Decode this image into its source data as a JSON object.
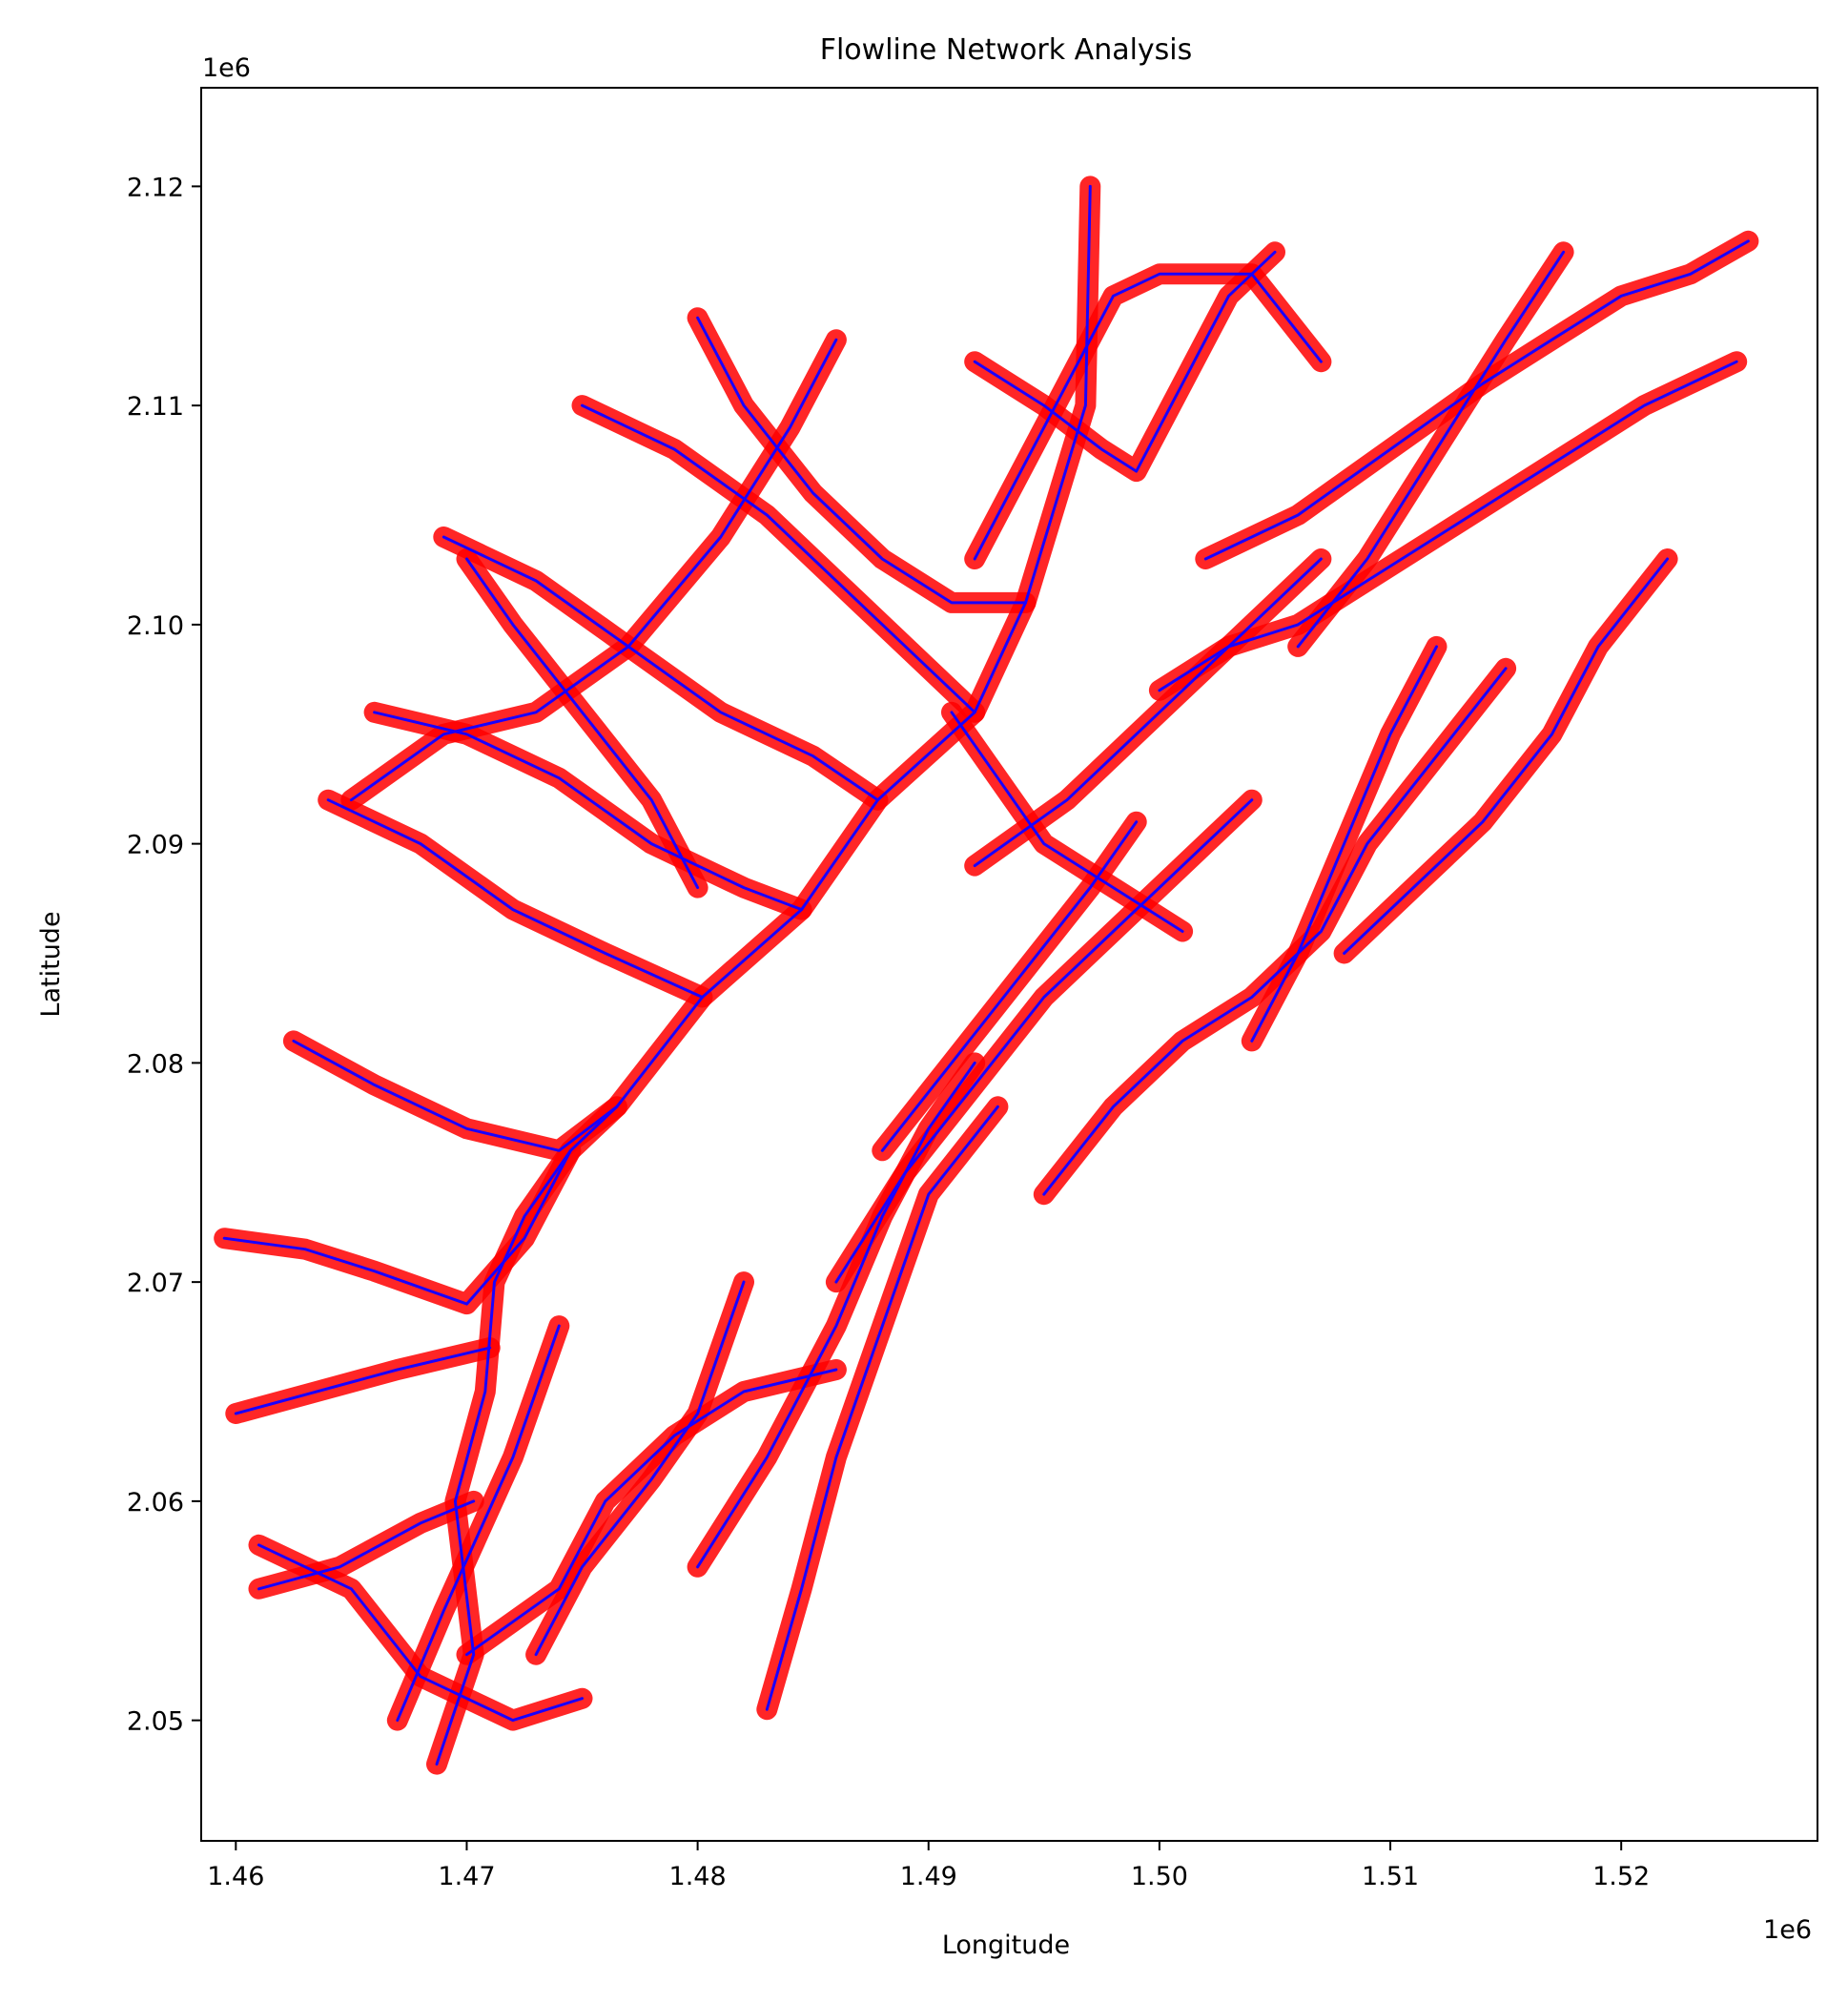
{
  "chart_data": {
    "type": "line",
    "title": "Flowline Network Analysis",
    "xlabel": "Longitude",
    "ylabel": "Latitude",
    "x_offset_label": "1e6",
    "y_offset_label": "1e6",
    "xlim": [
      1.4585,
      1.5285
    ],
    "ylim": [
      2.0445,
      2.1245
    ],
    "xticks": [
      1.46,
      1.47,
      1.48,
      1.49,
      1.5,
      1.51,
      1.52
    ],
    "xtick_labels": [
      "1.46",
      "1.47",
      "1.48",
      "1.49",
      "1.50",
      "1.51",
      "1.52"
    ],
    "yticks": [
      2.05,
      2.06,
      2.07,
      2.08,
      2.09,
      2.1,
      2.11,
      2.12
    ],
    "ytick_labels": [
      "2.05",
      "2.06",
      "2.07",
      "2.08",
      "2.09",
      "2.10",
      "2.11",
      "2.12"
    ],
    "grid": false,
    "colors": {
      "buffer": "#ff0000",
      "flowline": "#1a00ff"
    },
    "series": [
      {
        "x": [
          1.4687,
          1.4703,
          1.4695,
          1.4708,
          1.4712,
          1.4725,
          1.4745,
          1.4765,
          1.4802,
          1.4845,
          1.4878,
          1.492,
          1.4942,
          1.4968,
          1.497
        ],
        "y": [
          2.048,
          2.053,
          2.06,
          2.065,
          2.07,
          2.073,
          2.076,
          2.078,
          2.083,
          2.087,
          2.092,
          2.096,
          2.101,
          2.11,
          2.12
        ]
      },
      {
        "x": [
          1.4595,
          1.463,
          1.466,
          1.47,
          1.4725,
          1.4745
        ],
        "y": [
          2.072,
          2.0715,
          2.0705,
          2.069,
          2.072,
          2.076
        ]
      },
      {
        "x": [
          1.46,
          1.4635,
          1.467,
          1.471
        ],
        "y": [
          2.064,
          2.065,
          2.066,
          2.067
        ]
      },
      {
        "x": [
          1.461,
          1.4645,
          1.468,
          1.4703
        ],
        "y": [
          2.056,
          2.057,
          2.059,
          2.06
        ]
      },
      {
        "x": [
          1.4625,
          1.466,
          1.47,
          1.474,
          1.4765
        ],
        "y": [
          2.081,
          2.079,
          2.077,
          2.076,
          2.078
        ]
      },
      {
        "x": [
          1.464,
          1.468,
          1.472,
          1.476,
          1.4802
        ],
        "y": [
          2.092,
          2.09,
          2.087,
          2.085,
          2.083
        ]
      },
      {
        "x": [
          1.466,
          1.47,
          1.474,
          1.478,
          1.482,
          1.4845
        ],
        "y": [
          2.096,
          2.095,
          2.093,
          2.09,
          2.088,
          2.087
        ]
      },
      {
        "x": [
          1.469,
          1.473,
          1.477,
          1.481,
          1.485,
          1.4878
        ],
        "y": [
          2.104,
          2.102,
          2.099,
          2.096,
          2.094,
          2.092
        ]
      },
      {
        "x": [
          1.475,
          1.479,
          1.483,
          1.487,
          1.49,
          1.492
        ],
        "y": [
          2.11,
          2.108,
          2.105,
          2.101,
          2.098,
          2.096
        ]
      },
      {
        "x": [
          1.48,
          1.482,
          1.485,
          1.488,
          1.491,
          1.4942
        ],
        "y": [
          2.114,
          2.11,
          2.106,
          2.103,
          2.101,
          2.101
        ]
      },
      {
        "x": [
          1.492,
          1.495,
          1.4975,
          1.499,
          1.501,
          1.503,
          1.505
        ],
        "y": [
          2.112,
          2.11,
          2.108,
          2.107,
          2.111,
          2.115,
          2.117
        ]
      },
      {
        "x": [
          1.47,
          1.474,
          1.476,
          1.479,
          1.482,
          1.486
        ],
        "y": [
          2.053,
          2.056,
          2.06,
          2.063,
          2.065,
          2.066
        ]
      },
      {
        "x": [
          1.473,
          1.475,
          1.478,
          1.48,
          1.482
        ],
        "y": [
          2.053,
          2.057,
          2.061,
          2.064,
          2.07
        ]
      },
      {
        "x": [
          1.483,
          1.4845,
          1.486,
          1.488,
          1.49,
          1.493
        ],
        "y": [
          2.0505,
          2.056,
          2.062,
          2.068,
          2.074,
          2.078
        ]
      },
      {
        "x": [
          1.486,
          1.489,
          1.492,
          1.495,
          1.498,
          1.501,
          1.504
        ],
        "y": [
          2.07,
          2.075,
          2.079,
          2.083,
          2.086,
          2.089,
          2.092
        ]
      },
      {
        "x": [
          1.495,
          1.498,
          1.501,
          1.504,
          1.507,
          1.509,
          1.512,
          1.515
        ],
        "y": [
          2.074,
          2.078,
          2.081,
          2.083,
          2.086,
          2.09,
          2.094,
          2.098
        ]
      },
      {
        "x": [
          1.5,
          1.503,
          1.506,
          1.509,
          1.512,
          1.515,
          1.518,
          1.521,
          1.525
        ],
        "y": [
          2.097,
          2.099,
          2.1,
          2.102,
          2.104,
          2.106,
          2.108,
          2.11,
          2.112
        ]
      },
      {
        "x": [
          1.502,
          1.506,
          1.51,
          1.514,
          1.517,
          1.52,
          1.523,
          1.5255
        ],
        "y": [
          2.103,
          2.105,
          2.108,
          2.111,
          2.113,
          2.115,
          2.116,
          2.1175
        ]
      },
      {
        "x": [
          1.506,
          1.509,
          1.512,
          1.515,
          1.5175
        ],
        "y": [
          2.099,
          2.103,
          2.108,
          2.113,
          2.117
        ]
      },
      {
        "x": [
          1.508,
          1.511,
          1.514,
          1.517,
          1.519,
          1.522
        ],
        "y": [
          2.085,
          2.088,
          2.091,
          2.095,
          2.099,
          2.103
        ]
      },
      {
        "x": [
          1.504,
          1.506,
          1.508,
          1.51,
          1.512
        ],
        "y": [
          2.081,
          2.085,
          2.09,
          2.095,
          2.099
        ]
      },
      {
        "x": [
          1.492,
          1.496,
          1.5,
          1.504,
          1.507
        ],
        "y": [
          2.089,
          2.092,
          2.096,
          2.1,
          2.103
        ]
      },
      {
        "x": [
          1.488,
          1.491,
          1.494,
          1.497,
          1.499
        ],
        "y": [
          2.076,
          2.08,
          2.084,
          2.088,
          2.091
        ]
      },
      {
        "x": [
          1.48,
          1.483,
          1.486,
          1.488,
          1.49,
          1.492
        ],
        "y": [
          2.057,
          2.062,
          2.068,
          2.073,
          2.077,
          2.08
        ]
      },
      {
        "x": [
          1.461,
          1.465,
          1.468,
          1.472,
          1.475
        ],
        "y": [
          2.058,
          2.056,
          2.052,
          2.05,
          2.051
        ]
      },
      {
        "x": [
          1.467,
          1.469,
          1.472,
          1.474
        ],
        "y": [
          2.05,
          2.055,
          2.062,
          2.068
        ]
      },
      {
        "x": [
          1.465,
          1.469,
          1.473,
          1.477,
          1.481,
          1.484,
          1.486
        ],
        "y": [
          2.092,
          2.095,
          2.096,
          2.099,
          2.104,
          2.109,
          2.113
        ]
      },
      {
        "x": [
          1.47,
          1.472,
          1.475,
          1.478,
          1.48
        ],
        "y": [
          2.103,
          2.1,
          2.096,
          2.092,
          2.088
        ]
      },
      {
        "x": [
          1.492,
          1.494,
          1.496,
          1.498,
          1.5,
          1.504,
          1.507
        ],
        "y": [
          2.103,
          2.107,
          2.111,
          2.115,
          2.116,
          2.116,
          2.112
        ]
      },
      {
        "x": [
          1.491,
          1.493,
          1.495,
          1.498,
          1.501
        ],
        "y": [
          2.096,
          2.093,
          2.09,
          2.088,
          2.086
        ]
      }
    ]
  }
}
